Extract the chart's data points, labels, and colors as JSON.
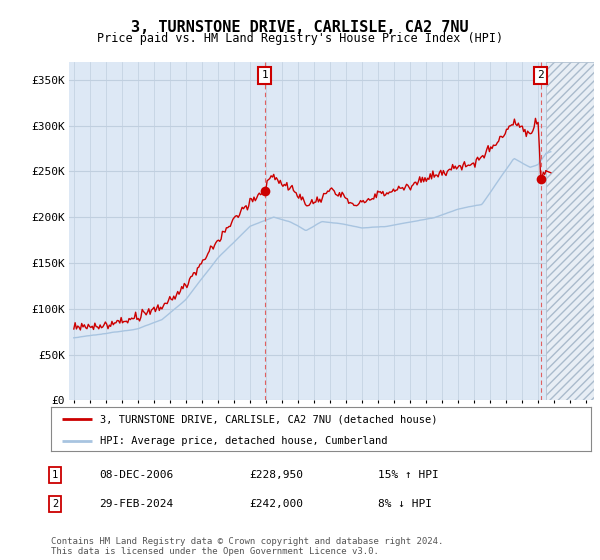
{
  "title": "3, TURNSTONE DRIVE, CARLISLE, CA2 7NU",
  "subtitle": "Price paid vs. HM Land Registry's House Price Index (HPI)",
  "ylim": [
    0,
    370000
  ],
  "xlim_start": 1994.7,
  "xlim_end": 2027.5,
  "hpi_color": "#a8c4e0",
  "price_color": "#cc0000",
  "plot_bg": "#dde8f5",
  "grid_color": "#c0cfdf",
  "hatch_color": "#aabbcc",
  "hatch_bg": "#e8eef5",
  "marker1_date": "08-DEC-2006",
  "marker1_price": "£228,950",
  "marker1_hpi": "15% ↑ HPI",
  "marker2_date": "29-FEB-2024",
  "marker2_price": "£242,000",
  "marker2_hpi": "8% ↓ HPI",
  "legend_line1": "3, TURNSTONE DRIVE, CARLISLE, CA2 7NU (detached house)",
  "legend_line2": "HPI: Average price, detached house, Cumberland",
  "footer1": "Contains HM Land Registry data © Crown copyright and database right 2024.",
  "footer2": "This data is licensed under the Open Government Licence v3.0.",
  "sale1_x": 2006.92,
  "sale1_y": 228950,
  "sale2_x": 2024.17,
  "sale2_y": 242000,
  "hatch_start": 2024.5
}
